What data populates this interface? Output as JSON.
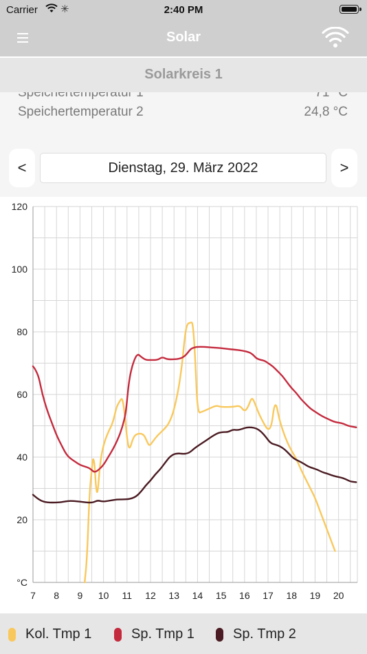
{
  "status_bar": {
    "carrier": "Carrier",
    "time": "2:40 PM"
  },
  "nav": {
    "title": "Solar",
    "menu_icon": "hamburger-menu-icon",
    "wifi_icon": "wifi-icon"
  },
  "section": {
    "title": "Solarkreis 1"
  },
  "readings": [
    {
      "label": "Speichertemperatur 1",
      "value": "71 °C"
    },
    {
      "label": "Speichertemperatur 2",
      "value": "24,8 °C"
    }
  ],
  "date_nav": {
    "prev": "<",
    "next": ">",
    "date": "Dienstag, 29. März 2022"
  },
  "legend": [
    {
      "label": "Kol. Tmp 1",
      "color": "#f9c85c"
    },
    {
      "label": "Sp. Tmp 1",
      "color": "#c42a3d"
    },
    {
      "label": "Sp. Tmp 2",
      "color": "#4a1b22"
    }
  ],
  "chart_data": {
    "type": "line",
    "unit_label": "°C",
    "xlim": [
      7,
      20.8
    ],
    "ylim": [
      0,
      120
    ],
    "y_ticks": [
      0,
      20,
      40,
      60,
      80,
      100,
      120
    ],
    "y_tick_labels": [
      "°C",
      "20",
      "40",
      "60",
      "80",
      "100",
      "120"
    ],
    "x_ticks": [
      7,
      8,
      9,
      10,
      11,
      12,
      13,
      14,
      15,
      16,
      17,
      18,
      19,
      20
    ],
    "x_tick_labels": [
      "7",
      "8",
      "9",
      "10",
      "11",
      "12",
      "13",
      "14",
      "15",
      "16",
      "17",
      "18",
      "19",
      "20"
    ],
    "x_minor_step": 0.5,
    "grid": true,
    "series": [
      {
        "name": "Kol. Tmp 1",
        "color": "#f9c85c",
        "points": [
          [
            9.2,
            0
          ],
          [
            9.3,
            8
          ],
          [
            9.4,
            28
          ],
          [
            9.5,
            36
          ],
          [
            9.55,
            40
          ],
          [
            9.62,
            38
          ],
          [
            9.68,
            30
          ],
          [
            9.75,
            28
          ],
          [
            9.85,
            38
          ],
          [
            10,
            44
          ],
          [
            10.2,
            48
          ],
          [
            10.4,
            51
          ],
          [
            10.55,
            56
          ],
          [
            10.7,
            58
          ],
          [
            10.8,
            59
          ],
          [
            10.9,
            54
          ],
          [
            11.0,
            46
          ],
          [
            11.1,
            42
          ],
          [
            11.25,
            46
          ],
          [
            11.4,
            47.5
          ],
          [
            11.7,
            47.5
          ],
          [
            11.85,
            45
          ],
          [
            11.95,
            43.5
          ],
          [
            12.1,
            45
          ],
          [
            12.3,
            47
          ],
          [
            12.6,
            49
          ],
          [
            12.8,
            51
          ],
          [
            13.0,
            55
          ],
          [
            13.2,
            62
          ],
          [
            13.35,
            70
          ],
          [
            13.45,
            78
          ],
          [
            13.55,
            82.5
          ],
          [
            13.7,
            83
          ],
          [
            13.8,
            83
          ],
          [
            13.9,
            72
          ],
          [
            14.0,
            54
          ],
          [
            14.2,
            54.5
          ],
          [
            14.5,
            55.5
          ],
          [
            14.8,
            56.5
          ],
          [
            15.0,
            56
          ],
          [
            15.5,
            56
          ],
          [
            15.8,
            56.5
          ],
          [
            16.0,
            54.5
          ],
          [
            16.15,
            56
          ],
          [
            16.3,
            59
          ],
          [
            16.4,
            58
          ],
          [
            16.6,
            54
          ],
          [
            16.8,
            51
          ],
          [
            17.0,
            48.5
          ],
          [
            17.15,
            50
          ],
          [
            17.25,
            56
          ],
          [
            17.35,
            57
          ],
          [
            17.45,
            53
          ],
          [
            17.6,
            49
          ],
          [
            17.8,
            45
          ],
          [
            18.0,
            42
          ],
          [
            18.2,
            39.5
          ],
          [
            18.4,
            36
          ],
          [
            18.6,
            33
          ],
          [
            18.8,
            30
          ],
          [
            19.0,
            27
          ],
          [
            19.2,
            23
          ],
          [
            19.4,
            19
          ],
          [
            19.6,
            15
          ],
          [
            19.75,
            12
          ],
          [
            19.85,
            10
          ]
        ]
      },
      {
        "name": "Sp. Tmp 1",
        "color": "#c42a3d",
        "points": [
          [
            7.0,
            69
          ],
          [
            7.1,
            68
          ],
          [
            7.25,
            65.5
          ],
          [
            7.4,
            60
          ],
          [
            7.6,
            55
          ],
          [
            7.8,
            51
          ],
          [
            8.0,
            47
          ],
          [
            8.2,
            44
          ],
          [
            8.4,
            41
          ],
          [
            8.6,
            39.5
          ],
          [
            8.8,
            38.5
          ],
          [
            9.0,
            37.5
          ],
          [
            9.2,
            37
          ],
          [
            9.4,
            36.5
          ],
          [
            9.55,
            35.5
          ],
          [
            9.65,
            35.2
          ],
          [
            9.8,
            36
          ],
          [
            10.0,
            37.5
          ],
          [
            10.2,
            40
          ],
          [
            10.4,
            42.5
          ],
          [
            10.6,
            45.5
          ],
          [
            10.8,
            49.5
          ],
          [
            10.95,
            54
          ],
          [
            11.05,
            62
          ],
          [
            11.15,
            67
          ],
          [
            11.3,
            71
          ],
          [
            11.45,
            73
          ],
          [
            11.6,
            72
          ],
          [
            11.8,
            71
          ],
          [
            12.0,
            71
          ],
          [
            12.3,
            71
          ],
          [
            12.5,
            72
          ],
          [
            12.7,
            71.2
          ],
          [
            13.0,
            71.2
          ],
          [
            13.3,
            71.5
          ],
          [
            13.5,
            72.5
          ],
          [
            13.7,
            74.5
          ],
          [
            13.85,
            75
          ],
          [
            14.0,
            75.2
          ],
          [
            14.3,
            75.2
          ],
          [
            14.6,
            75
          ],
          [
            15.0,
            74.8
          ],
          [
            15.3,
            74.5
          ],
          [
            15.6,
            74.3
          ],
          [
            15.9,
            74
          ],
          [
            16.2,
            73.5
          ],
          [
            16.35,
            72.8
          ],
          [
            16.5,
            71.5
          ],
          [
            16.7,
            71
          ],
          [
            16.85,
            70.8
          ],
          [
            17.0,
            70
          ],
          [
            17.2,
            69
          ],
          [
            17.4,
            67.5
          ],
          [
            17.6,
            66
          ],
          [
            17.8,
            64
          ],
          [
            18.0,
            62
          ],
          [
            18.2,
            60.5
          ],
          [
            18.4,
            58.5
          ],
          [
            18.6,
            57
          ],
          [
            18.8,
            55.5
          ],
          [
            19.0,
            54.5
          ],
          [
            19.2,
            53.5
          ],
          [
            19.4,
            52.7
          ],
          [
            19.6,
            52
          ],
          [
            19.8,
            51.3
          ],
          [
            20.0,
            51
          ],
          [
            20.2,
            50.7
          ],
          [
            20.4,
            50
          ],
          [
            20.6,
            49.7
          ],
          [
            20.75,
            49.5
          ]
        ]
      },
      {
        "name": "Sp. Tmp 2",
        "color": "#4a1b22",
        "points": [
          [
            7.0,
            28
          ],
          [
            7.15,
            27
          ],
          [
            7.35,
            26
          ],
          [
            7.6,
            25.5
          ],
          [
            8.0,
            25.5
          ],
          [
            8.2,
            25.6
          ],
          [
            8.5,
            26
          ],
          [
            8.7,
            26
          ],
          [
            9.0,
            25.8
          ],
          [
            9.3,
            25.5
          ],
          [
            9.55,
            25.5
          ],
          [
            9.75,
            26.2
          ],
          [
            9.95,
            25.8
          ],
          [
            10.2,
            26
          ],
          [
            10.4,
            26.3
          ],
          [
            10.6,
            26.5
          ],
          [
            11.0,
            26.5
          ],
          [
            11.2,
            26.8
          ],
          [
            11.4,
            27.5
          ],
          [
            11.6,
            29
          ],
          [
            11.8,
            31
          ],
          [
            12.0,
            32.5
          ],
          [
            12.2,
            34.5
          ],
          [
            12.4,
            36
          ],
          [
            12.6,
            38
          ],
          [
            12.8,
            40
          ],
          [
            13.0,
            41
          ],
          [
            13.2,
            41.2
          ],
          [
            13.4,
            41
          ],
          [
            13.6,
            41.2
          ],
          [
            13.75,
            42
          ],
          [
            13.9,
            43
          ],
          [
            14.1,
            44
          ],
          [
            14.3,
            45
          ],
          [
            14.5,
            46
          ],
          [
            14.7,
            47
          ],
          [
            14.9,
            47.8
          ],
          [
            15.1,
            48
          ],
          [
            15.3,
            48
          ],
          [
            15.5,
            48.8
          ],
          [
            15.7,
            48.6
          ],
          [
            15.9,
            49
          ],
          [
            16.1,
            49.5
          ],
          [
            16.3,
            49.5
          ],
          [
            16.5,
            49.2
          ],
          [
            16.7,
            48.2
          ],
          [
            16.9,
            46.5
          ],
          [
            17.1,
            44.5
          ],
          [
            17.3,
            44
          ],
          [
            17.5,
            43.5
          ],
          [
            17.7,
            42.5
          ],
          [
            17.9,
            41
          ],
          [
            18.1,
            39.5
          ],
          [
            18.3,
            38.8
          ],
          [
            18.5,
            38
          ],
          [
            18.7,
            37
          ],
          [
            18.9,
            36.5
          ],
          [
            19.1,
            36
          ],
          [
            19.3,
            35.2
          ],
          [
            19.5,
            34.8
          ],
          [
            19.7,
            34.2
          ],
          [
            19.9,
            33.8
          ],
          [
            20.1,
            33.5
          ],
          [
            20.3,
            33
          ],
          [
            20.5,
            32.2
          ],
          [
            20.75,
            32
          ]
        ]
      }
    ]
  }
}
